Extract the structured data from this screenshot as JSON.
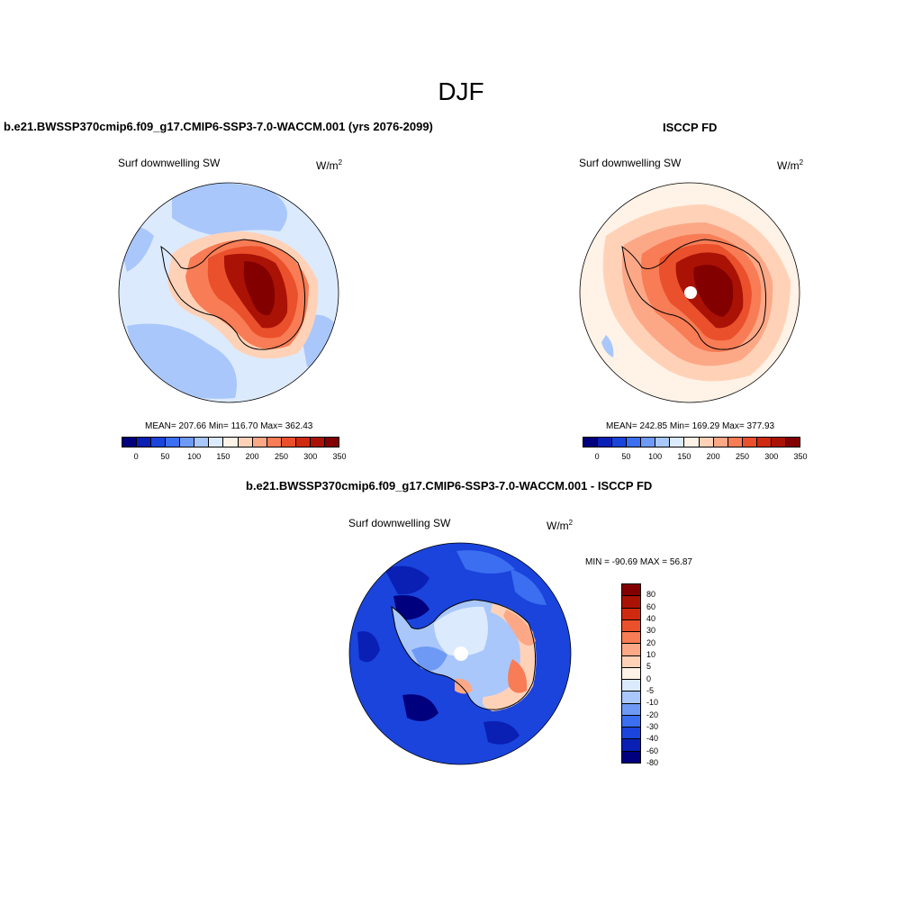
{
  "figure": {
    "title": "DJF"
  },
  "panels": {
    "left": {
      "title": "b.e21.BWSSP370cmip6.f09_g17.CMIP6-SSP3-7.0-WACCM.001 (yrs 2076-2099)",
      "variable": "Surf downwelling SW",
      "units_base": "W/m",
      "units_exp": "2",
      "stats": "MEAN= 207.66  Min= 116.70  Max= 362.43"
    },
    "right": {
      "title": "ISCCP FD",
      "variable": "Surf downwelling SW",
      "units_base": "W/m",
      "units_exp": "2",
      "stats": "MEAN= 242.85  Min= 169.29  Max= 377.93"
    },
    "diff": {
      "title": "b.e21.BWSSP370cmip6.f09_g17.CMIP6-SSP3-7.0-WACCM.001 - ISCCP FD",
      "variable": "Surf downwelling SW",
      "units_base": "W/m",
      "units_exp": "2",
      "minmax": "MIN = -90.69 MAX =  56.87"
    }
  },
  "colorbars": {
    "abs_colors": [
      "#00007f",
      "#0a1fb4",
      "#1a44dc",
      "#3b6ef0",
      "#6e9af6",
      "#a9c7fb",
      "#dceafd",
      "#fff2e6",
      "#ffd2b8",
      "#fca887",
      "#f87c55",
      "#ea502b",
      "#cf2a10",
      "#aa1206",
      "#820000"
    ],
    "abs_ticks": [
      "0",
      "50",
      "100",
      "150",
      "200",
      "250",
      "300",
      "350"
    ],
    "diff_colors": [
      "#820000",
      "#aa1206",
      "#cf2a10",
      "#ea502b",
      "#f87c55",
      "#fca887",
      "#ffd2b8",
      "#fff2e6",
      "#dceafd",
      "#a9c7fb",
      "#6e9af6",
      "#3b6ef0",
      "#1a44dc",
      "#0a1fb4",
      "#00007f"
    ],
    "diff_ticks": [
      "80",
      "60",
      "40",
      "30",
      "20",
      "10",
      "5",
      "0",
      "-5",
      "-10",
      "-20",
      "-30",
      "-40",
      "-60",
      "-80"
    ]
  }
}
